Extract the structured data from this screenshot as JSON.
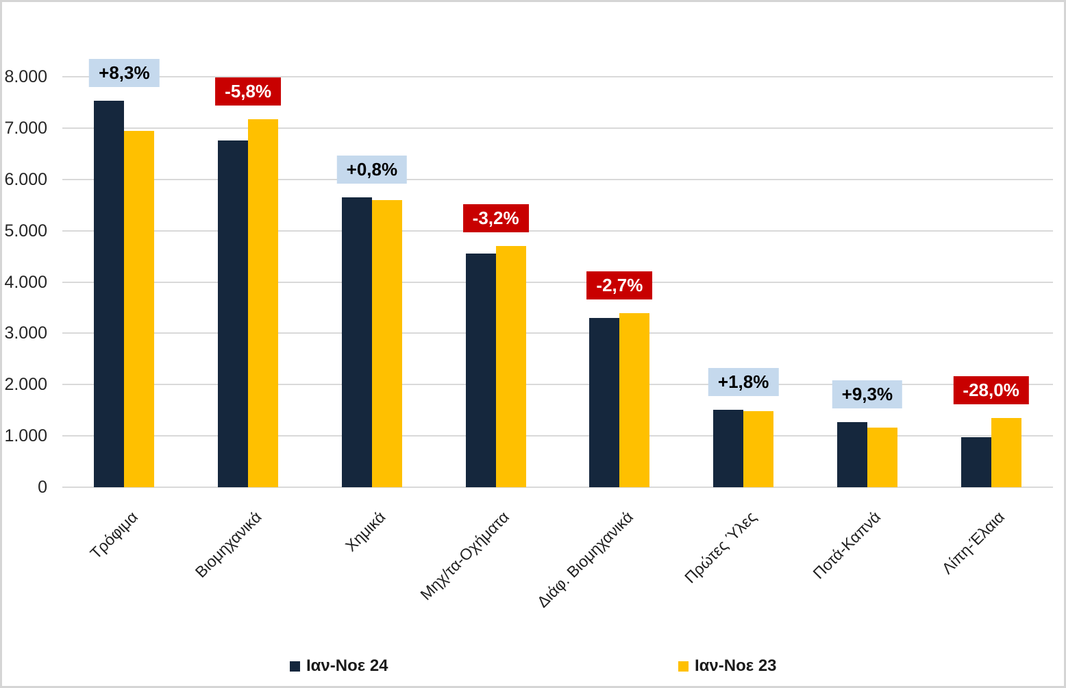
{
  "chart_data": {
    "type": "bar",
    "title": "",
    "categories": [
      "Τρόφιμα",
      "Βιομηχανικά",
      "Χημικά",
      "Μηχ/τα-Οχήματα",
      "Διάφ. Βιομηχανικά",
      "Πρώτες Ύλες",
      "Ποτά-Καπνά",
      "Λίπη-Έλαια"
    ],
    "series": [
      {
        "name": "Ιαν-Νοε 24",
        "color": "#15273D",
        "values": [
          7530,
          6755,
          5645,
          4550,
          3300,
          1512,
          1275,
          971
        ]
      },
      {
        "name": "Ιαν-Νοε 23",
        "color": "#FFC000",
        "values": [
          6950,
          7170,
          5600,
          4700,
          3390,
          1485,
          1166,
          1349
        ]
      }
    ],
    "pct_change_labels": [
      {
        "text": "+8,3%",
        "type": "increase"
      },
      {
        "text": "-5,8%",
        "type": "decrease"
      },
      {
        "text": "+0,8%",
        "type": "increase"
      },
      {
        "text": "-3,2%",
        "type": "decrease"
      },
      {
        "text": "-2,7%",
        "type": "decrease"
      },
      {
        "text": "+1,8%",
        "type": "increase"
      },
      {
        "text": "+9,3%",
        "type": "increase"
      },
      {
        "text": "-28,0%",
        "type": "decrease"
      }
    ],
    "y_tick_labels": [
      "0",
      "1.000",
      "2.000",
      "3.000",
      "4.000",
      "5.000",
      "6.000",
      "7.000",
      "8.000"
    ],
    "ylim": [
      0,
      8000
    ],
    "grid": true,
    "legend_position": "bottom",
    "colors": {
      "increase_badge_bg": "#C5D9ED",
      "increase_badge_text": "#000000",
      "decrease_badge_bg": "#C80000",
      "decrease_badge_text": "#FFFFFF",
      "gridline": "#D9D9D9"
    }
  }
}
